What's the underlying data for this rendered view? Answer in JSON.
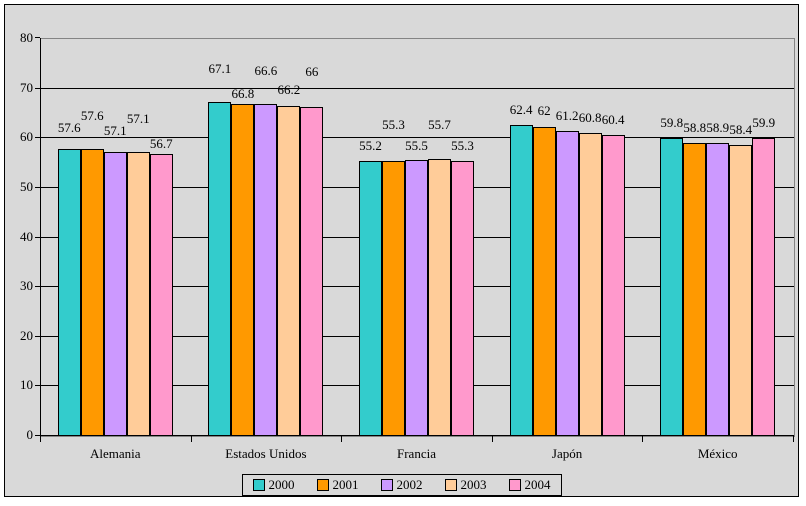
{
  "chart_data": {
    "type": "bar",
    "title": "",
    "xlabel": "",
    "ylabel": "",
    "categories": [
      "Alemania",
      "Estados Unidos",
      "Francia",
      "Japón",
      "México"
    ],
    "series": [
      {
        "name": "2000",
        "color": "#33CCCC",
        "values": [
          57.6,
          67.1,
          55.2,
          62.4,
          59.8
        ]
      },
      {
        "name": "2001",
        "color": "#FF9900",
        "values": [
          57.6,
          66.8,
          55.3,
          62.0,
          58.8
        ]
      },
      {
        "name": "2002",
        "color": "#CC99FF",
        "values": [
          57.1,
          66.6,
          55.5,
          61.2,
          58.9
        ]
      },
      {
        "name": "2003",
        "color": "#FFCC99",
        "values": [
          57.1,
          66.2,
          55.7,
          60.8,
          58.4
        ]
      },
      {
        "name": "2004",
        "color": "#FF99CC",
        "values": [
          56.7,
          66.0,
          55.3,
          60.4,
          59.9
        ]
      }
    ],
    "data_labels": [
      [
        "57.6",
        "57.6",
        "57.1",
        "57.1",
        "56.7"
      ],
      [
        "67.1",
        "66.8",
        "66.6",
        "66.2",
        "66"
      ],
      [
        "55.2",
        "55.3",
        "55.5",
        "55.7",
        "55.3"
      ],
      [
        "62.4",
        "62",
        "61.2",
        "60.8",
        "60.4"
      ],
      [
        "59.8",
        "58.8",
        "58.9",
        "58.4",
        "59.9"
      ]
    ],
    "label_offsets": [
      [
        14,
        26,
        14,
        26,
        3
      ],
      [
        26,
        3,
        26,
        9,
        28
      ],
      [
        8,
        29,
        7,
        27,
        8
      ],
      [
        8,
        9,
        8,
        8,
        8
      ],
      [
        8,
        8,
        8,
        8,
        8
      ]
    ],
    "ylim": [
      0,
      80
    ],
    "ytick_step": 10,
    "yticks": [
      "0",
      "10",
      "20",
      "30",
      "40",
      "50",
      "60",
      "70",
      "80"
    ],
    "grid": true,
    "legend_position": "bottom"
  },
  "colors": {
    "background": "#D9D9D9",
    "plot_border": "#848484",
    "gridline": "#000000",
    "axis": "#000000",
    "bar_border": "#000000",
    "frame_border": "#000000",
    "text": "#000000"
  }
}
